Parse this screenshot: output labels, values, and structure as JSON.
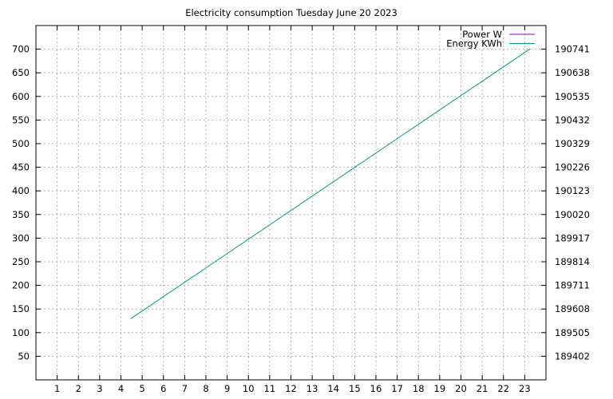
{
  "chart_data": {
    "type": "line",
    "title": "Electricity consumption Tuesday June 20 2023",
    "xlabel": "",
    "ylabel": "",
    "xlim": [
      0,
      24
    ],
    "ylim": [
      0,
      750
    ],
    "x_ticks": [
      "1",
      "2",
      "3",
      "4",
      "5",
      "6",
      "7",
      "8",
      "9",
      "10",
      "11",
      "12",
      "13",
      "14",
      "15",
      "16",
      "17",
      "18",
      "19",
      "20",
      "21",
      "22",
      "23"
    ],
    "y_ticks": [
      "50",
      "100",
      "150",
      "200",
      "250",
      "300",
      "350",
      "400",
      "450",
      "500",
      "550",
      "600",
      "650",
      "700"
    ],
    "y2_ticks": [
      "189402",
      "189505",
      "189608",
      "189711",
      "189814",
      "189917",
      "190020",
      "190123",
      "190226",
      "190329",
      "190432",
      "190535",
      "190638",
      "190741"
    ],
    "y2_lim": [
      189299,
      190844
    ],
    "grid": true,
    "legend_position": "top-right",
    "series": [
      {
        "name": "Power W",
        "color": "#9400d3",
        "axis": "y1",
        "x": [],
        "y": []
      },
      {
        "name": "Energy KWh",
        "color": "#009e73",
        "axis": "y2",
        "x": [
          4.45,
          23.25
        ],
        "y": [
          189565,
          190742
        ]
      }
    ]
  }
}
